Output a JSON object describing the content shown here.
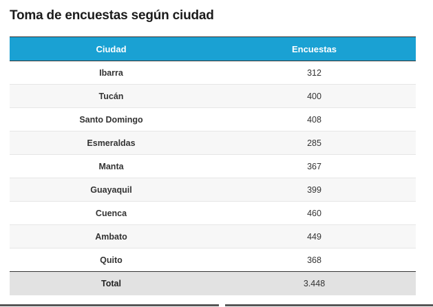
{
  "title": "Toma de encuestas según ciudad",
  "table": {
    "headers": [
      "Ciudad",
      "Encuestas"
    ],
    "rows": [
      {
        "city": "Ibarra",
        "value": "312"
      },
      {
        "city": "Tucán",
        "value": "400"
      },
      {
        "city": "Santo Domingo",
        "value": "408"
      },
      {
        "city": "Esmeraldas",
        "value": "285"
      },
      {
        "city": "Manta",
        "value": "367"
      },
      {
        "city": "Guayaquil",
        "value": "399"
      },
      {
        "city": "Cuenca",
        "value": "460"
      },
      {
        "city": "Ambato",
        "value": "449"
      },
      {
        "city": "Quito",
        "value": "368"
      }
    ],
    "total": {
      "label": "Total",
      "value": "3.448"
    }
  },
  "colors": {
    "header_bg": "#1aa1d3",
    "total_bg": "#e2e2e2"
  }
}
